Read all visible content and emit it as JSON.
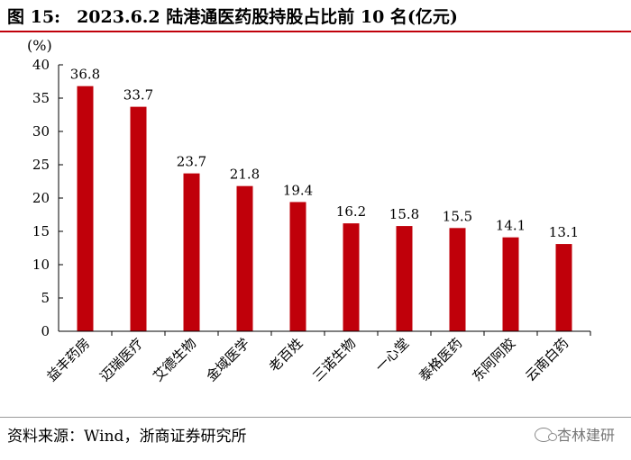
{
  "figure": {
    "number": "图 15:",
    "title": "2023.6.2 陆港通医药股持股占比前 10 名(亿元)"
  },
  "chart_data": {
    "type": "bar",
    "title": "2023.6.2 陆港通医药股持股占比前 10 名(亿元)",
    "ylabel": "(%)",
    "xlabel": "",
    "ylim": [
      0,
      40
    ],
    "yticks": [
      0,
      5,
      10,
      15,
      20,
      25,
      30,
      35,
      40
    ],
    "grid": false,
    "categories": [
      "益丰药房",
      "迈瑞医疗",
      "艾德生物",
      "金域医学",
      "老百姓",
      "三诺生物",
      "一心堂",
      "泰格医药",
      "东阿阿胶",
      "云南白药"
    ],
    "values": [
      36.8,
      33.7,
      23.7,
      21.8,
      19.4,
      16.2,
      15.8,
      15.5,
      14.1,
      13.1
    ],
    "data_labels": [
      "36.8",
      "33.7",
      "23.7",
      "21.8",
      "19.4",
      "16.2",
      "15.8",
      "15.5",
      "14.1",
      "13.1"
    ],
    "bar_color": "#c0000a"
  },
  "footer": {
    "source": "资料来源：Wind，浙商证券研究所",
    "watermark": "杏林建研"
  }
}
